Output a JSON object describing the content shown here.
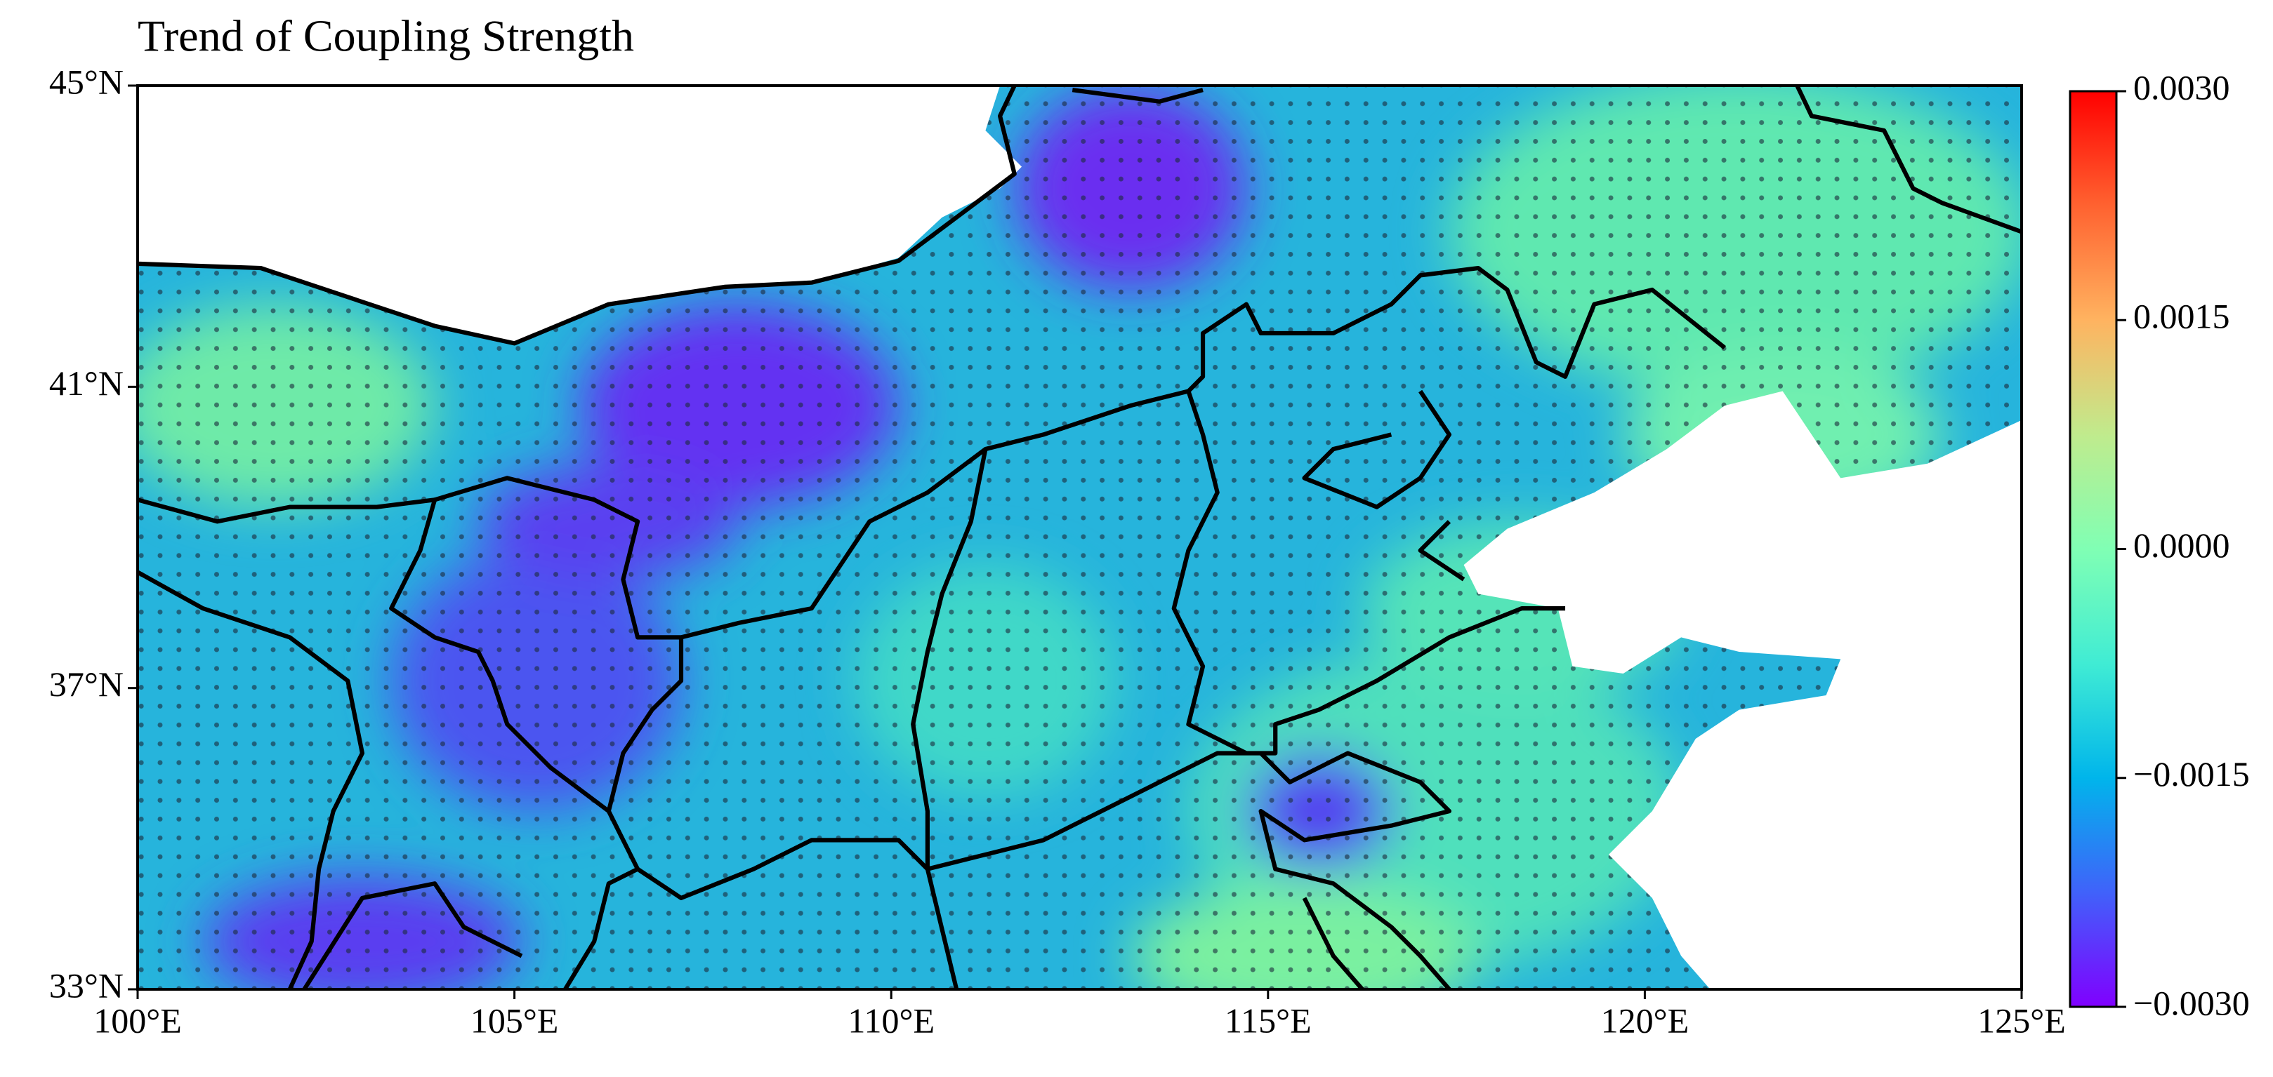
{
  "chart_data": {
    "type": "map",
    "title": "Trend of Coupling Strength",
    "xlim": [
      100,
      125
    ],
    "xticks": [
      {
        "value": 100,
        "label": "100°E"
      },
      {
        "value": 105,
        "label": "105°E"
      },
      {
        "value": 110,
        "label": "110°E"
      },
      {
        "value": 115,
        "label": "115°E"
      },
      {
        "value": 120,
        "label": "120°E"
      },
      {
        "value": 125,
        "label": "125°E"
      }
    ],
    "ylim": [
      33,
      45
    ],
    "yticks": [
      {
        "value": 33,
        "label": "33°N"
      },
      {
        "value": 37,
        "label": "37°N"
      },
      {
        "value": 41,
        "label": "41°N"
      },
      {
        "value": 45,
        "label": "45°N"
      }
    ],
    "colorbar": {
      "lim": [
        -0.003,
        0.003
      ],
      "ticks": [
        {
          "value": -0.003,
          "label": "−0.0030"
        },
        {
          "value": -0.0015,
          "label": "−0.0015"
        },
        {
          "value": 0,
          "label": "0.0000"
        },
        {
          "value": 0.0015,
          "label": "0.0015"
        },
        {
          "value": 0.003,
          "label": "0.0030"
        }
      ],
      "colors": [
        "#8000ff",
        "#4062fa",
        "#00b5eb",
        "#40ecd4",
        "#80ffb4",
        "#c0eb8d",
        "#ffb360",
        "#ff6230",
        "#ff0000"
      ]
    }
  }
}
